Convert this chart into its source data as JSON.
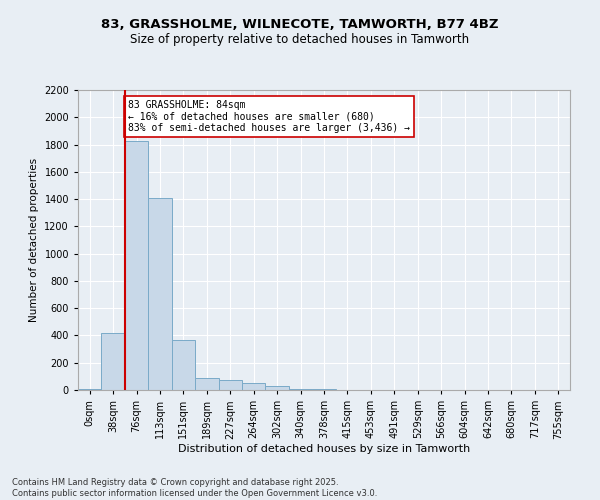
{
  "title_line1": "83, GRASSHOLME, WILNECOTE, TAMWORTH, B77 4BZ",
  "title_line2": "Size of property relative to detached houses in Tamworth",
  "xlabel": "Distribution of detached houses by size in Tamworth",
  "ylabel": "Number of detached properties",
  "bin_labels": [
    "0sqm",
    "38sqm",
    "76sqm",
    "113sqm",
    "151sqm",
    "189sqm",
    "227sqm",
    "264sqm",
    "302sqm",
    "340sqm",
    "378sqm",
    "415sqm",
    "453sqm",
    "491sqm",
    "529sqm",
    "566sqm",
    "604sqm",
    "642sqm",
    "680sqm",
    "717sqm",
    "755sqm"
  ],
  "bar_heights": [
    5,
    420,
    1825,
    1410,
    370,
    90,
    70,
    55,
    30,
    10,
    5,
    3,
    2,
    1,
    1,
    1,
    0,
    0,
    0,
    0,
    0
  ],
  "bar_color": "#c8d8e8",
  "bar_edge_color": "#7aaac8",
  "property_bin_index": 2,
  "red_line_color": "#cc0000",
  "annotation_text": "83 GRASSHOLME: 84sqm\n← 16% of detached houses are smaller (680)\n83% of semi-detached houses are larger (3,436) →",
  "annotation_box_color": "#ffffff",
  "annotation_box_edge": "#cc0000",
  "ylim": [
    0,
    2200
  ],
  "yticks": [
    0,
    200,
    400,
    600,
    800,
    1000,
    1200,
    1400,
    1600,
    1800,
    2000,
    2200
  ],
  "background_color": "#e8eef4",
  "footer_line1": "Contains HM Land Registry data © Crown copyright and database right 2025.",
  "footer_line2": "Contains public sector information licensed under the Open Government Licence v3.0."
}
